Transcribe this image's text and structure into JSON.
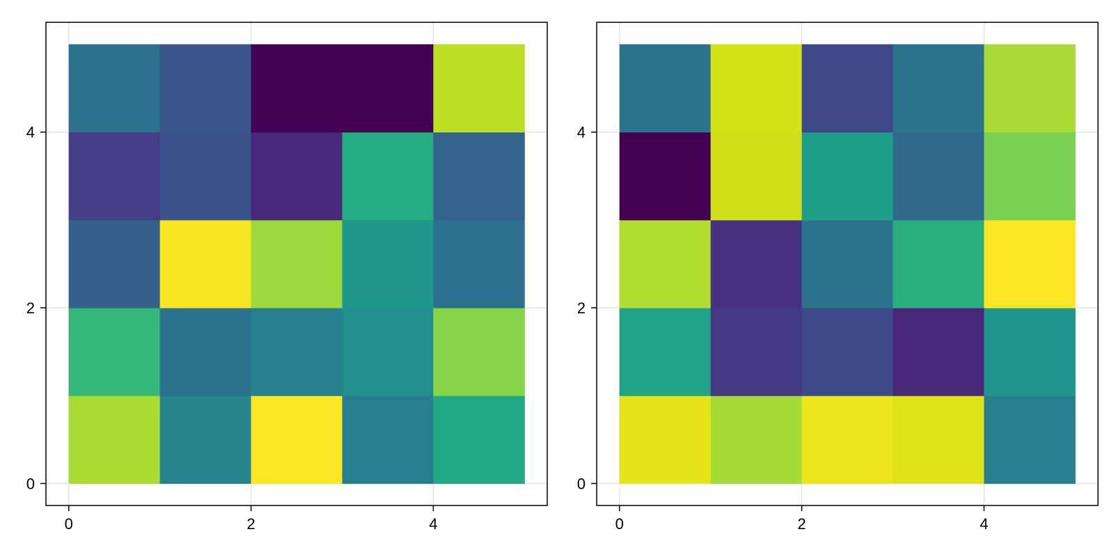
{
  "chart_data": [
    {
      "type": "heatmap",
      "title": "",
      "xlabel": "",
      "ylabel": "",
      "xlim": [
        -0.25,
        5.25
      ],
      "ylim": [
        -0.25,
        5.25
      ],
      "xticks": [
        0,
        2,
        4
      ],
      "yticks": [
        0,
        2,
        4
      ],
      "xtick_labels": [
        "0",
        "2",
        "4"
      ],
      "ytick_labels": [
        "0",
        "2",
        "4"
      ],
      "grid": true,
      "colormap": "viridis",
      "cell_edges_x": [
        0,
        1,
        2,
        3,
        4,
        5
      ],
      "cell_edges_y": [
        0,
        1,
        2,
        3,
        4,
        5
      ],
      "values_rows_bottom_to_top": [
        [
          0.82,
          0.45,
          0.99,
          0.43,
          0.63
        ],
        [
          0.65,
          0.38,
          0.42,
          0.48,
          0.76
        ],
        [
          0.26,
          0.98,
          0.78,
          0.51,
          0.37
        ],
        [
          0.17,
          0.22,
          0.12,
          0.6,
          0.27
        ],
        [
          0.36,
          0.23,
          0.0,
          0.0,
          0.85
        ]
      ],
      "cell_colors_rows_bottom_to_top": [
        [
          "#aadb32",
          "#25848e",
          "#fde725",
          "#277f8e",
          "#22a884"
        ],
        [
          "#35b779",
          "#2c738e",
          "#27808e",
          "#21908d",
          "#86d549"
        ],
        [
          "#355f8d",
          "#f8e621",
          "#9bd93c",
          "#1f988b",
          "#2c728e"
        ],
        [
          "#433e85",
          "#3b528b",
          "#482878",
          "#25ac82",
          "#33628d"
        ],
        [
          "#2c728e",
          "#3a548c",
          "#440154",
          "#440154",
          "#bddf26"
        ]
      ]
    },
    {
      "type": "heatmap",
      "title": "",
      "xlabel": "",
      "ylabel": "",
      "xlim": [
        -0.25,
        5.25
      ],
      "ylim": [
        -0.25,
        5.25
      ],
      "xticks": [
        0,
        2,
        4
      ],
      "yticks": [
        0,
        2,
        4
      ],
      "xtick_labels": [
        "0",
        "2",
        "4"
      ],
      "ytick_labels": [
        "0",
        "2",
        "4"
      ],
      "grid": true,
      "colormap": "viridis",
      "cell_edges_x": [
        0,
        1,
        2,
        3,
        4,
        5
      ],
      "cell_edges_y": [
        0,
        1,
        2,
        3,
        4,
        5
      ],
      "values_rows_bottom_to_top": [
        [
          0.94,
          0.8,
          0.96,
          0.92,
          0.45
        ],
        [
          0.55,
          0.16,
          0.2,
          0.1,
          0.52
        ],
        [
          0.85,
          0.12,
          0.38,
          0.64,
          1.0
        ],
        [
          0.0,
          0.9,
          0.56,
          0.33,
          0.74
        ],
        [
          0.39,
          0.91,
          0.19,
          0.38,
          0.81
        ]
      ],
      "cell_colors_rows_bottom_to_top": [
        [
          "#e5e419",
          "#a5db36",
          "#ece51b",
          "#dde318",
          "#277f8e"
        ],
        [
          "#20a386",
          "#443983",
          "#3e4a89",
          "#482878",
          "#1f958b"
        ],
        [
          "#b0dd2f",
          "#46327e",
          "#2c738e",
          "#2ab07f",
          "#fde725"
        ],
        [
          "#440154",
          "#d0e11c",
          "#1f9e89",
          "#31688e",
          "#7ad151"
        ],
        [
          "#2c738e",
          "#d5e21a",
          "#3f4889",
          "#2c738e",
          "#a8db34"
        ]
      ]
    }
  ]
}
